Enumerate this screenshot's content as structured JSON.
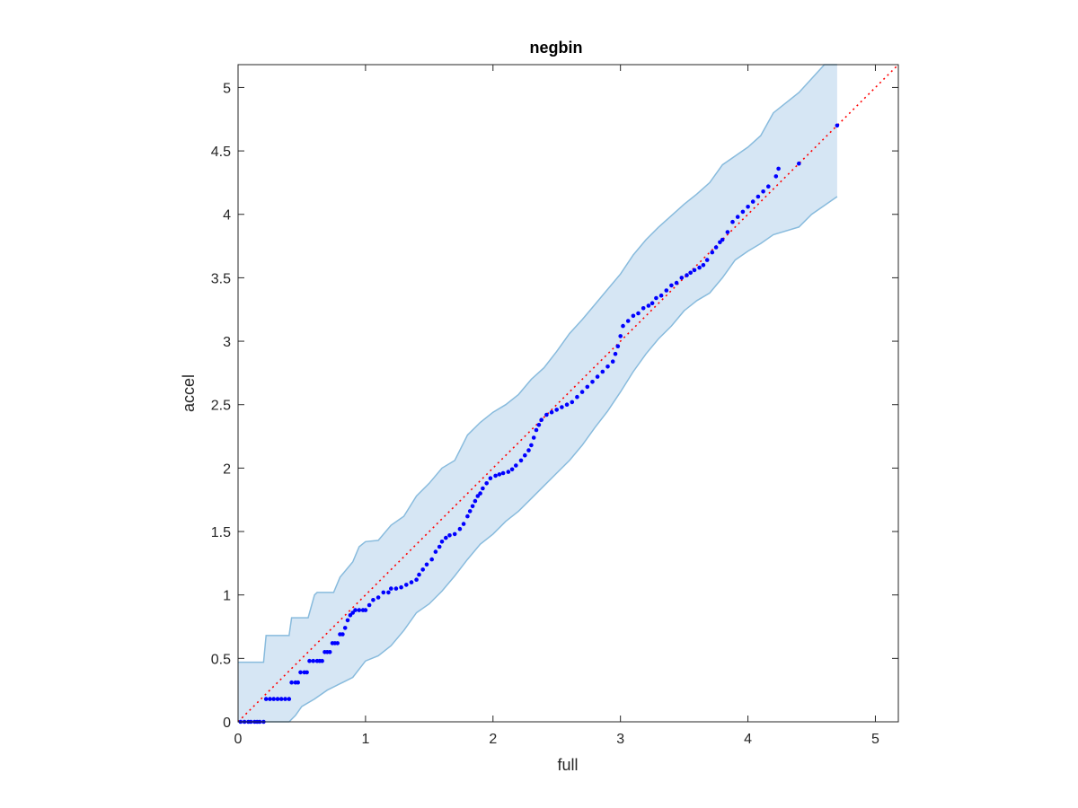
{
  "chart_data": {
    "type": "scatter",
    "title": "negbin",
    "xlabel": "full",
    "ylabel": "accel",
    "xlim": [
      0,
      5.18
    ],
    "ylim": [
      0,
      5.18
    ],
    "xticks": [
      0,
      1,
      2,
      3,
      4,
      5
    ],
    "yticks": [
      0,
      0.5,
      1,
      1.5,
      2,
      2.5,
      3,
      3.5,
      4,
      4.5,
      5
    ],
    "xtick_labels": [
      "0",
      "1",
      "2",
      "3",
      "4",
      "5"
    ],
    "ytick_labels": [
      "0",
      "0.5",
      "1",
      "1.5",
      "2",
      "2.5",
      "3",
      "3.5",
      "4",
      "4.5",
      "5"
    ],
    "grid": false,
    "reference_line": {
      "style": "dotted",
      "color": "#ff0000",
      "from": [
        0,
        0
      ],
      "to": [
        5.18,
        5.18
      ]
    },
    "band": {
      "fill": "#d6e6f4",
      "stroke": "#88bbdd",
      "upper": [
        [
          0,
          0.47
        ],
        [
          0.2,
          0.47
        ],
        [
          0.22,
          0.68
        ],
        [
          0.4,
          0.68
        ],
        [
          0.42,
          0.82
        ],
        [
          0.55,
          0.82
        ],
        [
          0.6,
          1.0
        ],
        [
          0.6,
          1.0
        ],
        [
          0.62,
          1.02
        ],
        [
          0.75,
          1.02
        ],
        [
          0.8,
          1.14
        ],
        [
          0.9,
          1.26
        ],
        [
          0.95,
          1.38
        ],
        [
          1.0,
          1.42
        ],
        [
          1.1,
          1.43
        ],
        [
          1.2,
          1.55
        ],
        [
          1.3,
          1.62
        ],
        [
          1.4,
          1.78
        ],
        [
          1.5,
          1.88
        ],
        [
          1.6,
          2.0
        ],
        [
          1.7,
          2.06
        ],
        [
          1.8,
          2.26
        ],
        [
          1.9,
          2.36
        ],
        [
          2.0,
          2.44
        ],
        [
          2.1,
          2.5
        ],
        [
          2.2,
          2.58
        ],
        [
          2.3,
          2.7
        ],
        [
          2.4,
          2.79
        ],
        [
          2.5,
          2.92
        ],
        [
          2.6,
          3.06
        ],
        [
          2.7,
          3.17
        ],
        [
          2.8,
          3.29
        ],
        [
          2.9,
          3.41
        ],
        [
          3.0,
          3.53
        ],
        [
          3.1,
          3.68
        ],
        [
          3.2,
          3.8
        ],
        [
          3.3,
          3.9
        ],
        [
          3.4,
          3.99
        ],
        [
          3.5,
          4.08
        ],
        [
          3.6,
          4.16
        ],
        [
          3.7,
          4.25
        ],
        [
          3.8,
          4.39
        ],
        [
          3.9,
          4.46
        ],
        [
          4.0,
          4.53
        ],
        [
          4.1,
          4.62
        ],
        [
          4.2,
          4.8
        ],
        [
          4.4,
          4.96
        ],
        [
          4.6,
          5.18
        ],
        [
          4.7,
          5.18
        ]
      ],
      "lower": [
        [
          0,
          0
        ],
        [
          0.4,
          0.0
        ],
        [
          0.45,
          0.05
        ],
        [
          0.5,
          0.12
        ],
        [
          0.6,
          0.18
        ],
        [
          0.7,
          0.25
        ],
        [
          0.8,
          0.3
        ],
        [
          0.9,
          0.35
        ],
        [
          1.0,
          0.48
        ],
        [
          1.1,
          0.52
        ],
        [
          1.2,
          0.6
        ],
        [
          1.3,
          0.72
        ],
        [
          1.4,
          0.86
        ],
        [
          1.5,
          0.93
        ],
        [
          1.6,
          1.03
        ],
        [
          1.7,
          1.15
        ],
        [
          1.8,
          1.28
        ],
        [
          1.9,
          1.4
        ],
        [
          2.0,
          1.48
        ],
        [
          2.1,
          1.58
        ],
        [
          2.2,
          1.66
        ],
        [
          2.3,
          1.76
        ],
        [
          2.4,
          1.86
        ],
        [
          2.5,
          1.96
        ],
        [
          2.6,
          2.06
        ],
        [
          2.7,
          2.18
        ],
        [
          2.8,
          2.32
        ],
        [
          2.9,
          2.45
        ],
        [
          3.0,
          2.6
        ],
        [
          3.1,
          2.76
        ],
        [
          3.2,
          2.9
        ],
        [
          3.3,
          3.02
        ],
        [
          3.4,
          3.12
        ],
        [
          3.5,
          3.24
        ],
        [
          3.6,
          3.32
        ],
        [
          3.7,
          3.38
        ],
        [
          3.8,
          3.5
        ],
        [
          3.9,
          3.64
        ],
        [
          4.0,
          3.71
        ],
        [
          4.1,
          3.77
        ],
        [
          4.2,
          3.84
        ],
        [
          4.4,
          3.9
        ],
        [
          4.5,
          4.0
        ],
        [
          4.7,
          4.14
        ]
      ]
    },
    "series": [
      {
        "color": "#0000ff",
        "marker": "dot",
        "points": [
          [
            0.02,
            0.0
          ],
          [
            0.05,
            0.0
          ],
          [
            0.08,
            0.0
          ],
          [
            0.1,
            0.0
          ],
          [
            0.13,
            0.0
          ],
          [
            0.15,
            0.0
          ],
          [
            0.17,
            0.0
          ],
          [
            0.2,
            0.0
          ],
          [
            0.22,
            0.18
          ],
          [
            0.25,
            0.18
          ],
          [
            0.28,
            0.18
          ],
          [
            0.31,
            0.18
          ],
          [
            0.34,
            0.18
          ],
          [
            0.37,
            0.18
          ],
          [
            0.4,
            0.18
          ],
          [
            0.42,
            0.31
          ],
          [
            0.45,
            0.31
          ],
          [
            0.47,
            0.31
          ],
          [
            0.49,
            0.39
          ],
          [
            0.52,
            0.39
          ],
          [
            0.54,
            0.39
          ],
          [
            0.56,
            0.48
          ],
          [
            0.59,
            0.48
          ],
          [
            0.62,
            0.48
          ],
          [
            0.64,
            0.48
          ],
          [
            0.66,
            0.48
          ],
          [
            0.68,
            0.55
          ],
          [
            0.7,
            0.55
          ],
          [
            0.72,
            0.55
          ],
          [
            0.74,
            0.62
          ],
          [
            0.76,
            0.62
          ],
          [
            0.78,
            0.62
          ],
          [
            0.8,
            0.69
          ],
          [
            0.82,
            0.69
          ],
          [
            0.84,
            0.74
          ],
          [
            0.86,
            0.8
          ],
          [
            0.88,
            0.84
          ],
          [
            0.9,
            0.86
          ],
          [
            0.92,
            0.88
          ],
          [
            0.95,
            0.88
          ],
          [
            0.98,
            0.88
          ],
          [
            1.0,
            0.88
          ],
          [
            1.03,
            0.92
          ],
          [
            1.06,
            0.96
          ],
          [
            1.1,
            0.98
          ],
          [
            1.14,
            1.02
          ],
          [
            1.18,
            1.02
          ],
          [
            1.2,
            1.05
          ],
          [
            1.24,
            1.05
          ],
          [
            1.28,
            1.06
          ],
          [
            1.32,
            1.08
          ],
          [
            1.36,
            1.1
          ],
          [
            1.4,
            1.12
          ],
          [
            1.42,
            1.16
          ],
          [
            1.45,
            1.2
          ],
          [
            1.48,
            1.24
          ],
          [
            1.52,
            1.28
          ],
          [
            1.55,
            1.34
          ],
          [
            1.58,
            1.38
          ],
          [
            1.6,
            1.42
          ],
          [
            1.63,
            1.45
          ],
          [
            1.66,
            1.47
          ],
          [
            1.7,
            1.48
          ],
          [
            1.74,
            1.52
          ],
          [
            1.77,
            1.56
          ],
          [
            1.8,
            1.62
          ],
          [
            1.82,
            1.66
          ],
          [
            1.84,
            1.7
          ],
          [
            1.86,
            1.74
          ],
          [
            1.88,
            1.78
          ],
          [
            1.9,
            1.8
          ],
          [
            1.92,
            1.84
          ],
          [
            1.95,
            1.88
          ],
          [
            1.98,
            1.92
          ],
          [
            2.02,
            1.94
          ],
          [
            2.05,
            1.95
          ],
          [
            2.08,
            1.96
          ],
          [
            2.12,
            1.97
          ],
          [
            2.15,
            1.99
          ],
          [
            2.18,
            2.02
          ],
          [
            2.22,
            2.06
          ],
          [
            2.25,
            2.1
          ],
          [
            2.28,
            2.14
          ],
          [
            2.3,
            2.18
          ],
          [
            2.32,
            2.24
          ],
          [
            2.34,
            2.3
          ],
          [
            2.36,
            2.34
          ],
          [
            2.38,
            2.38
          ],
          [
            2.42,
            2.42
          ],
          [
            2.46,
            2.44
          ],
          [
            2.5,
            2.46
          ],
          [
            2.54,
            2.48
          ],
          [
            2.58,
            2.5
          ],
          [
            2.62,
            2.52
          ],
          [
            2.66,
            2.56
          ],
          [
            2.7,
            2.6
          ],
          [
            2.74,
            2.64
          ],
          [
            2.78,
            2.68
          ],
          [
            2.82,
            2.72
          ],
          [
            2.86,
            2.76
          ],
          [
            2.9,
            2.8
          ],
          [
            2.94,
            2.84
          ],
          [
            2.96,
            2.9
          ],
          [
            2.98,
            2.96
          ],
          [
            3.0,
            3.04
          ],
          [
            3.02,
            3.12
          ],
          [
            3.06,
            3.16
          ],
          [
            3.1,
            3.2
          ],
          [
            3.14,
            3.22
          ],
          [
            3.18,
            3.26
          ],
          [
            3.22,
            3.28
          ],
          [
            3.25,
            3.3
          ],
          [
            3.28,
            3.34
          ],
          [
            3.32,
            3.36
          ],
          [
            3.36,
            3.4
          ],
          [
            3.4,
            3.44
          ],
          [
            3.44,
            3.46
          ],
          [
            3.48,
            3.5
          ],
          [
            3.52,
            3.52
          ],
          [
            3.55,
            3.54
          ],
          [
            3.58,
            3.56
          ],
          [
            3.62,
            3.58
          ],
          [
            3.65,
            3.6
          ],
          [
            3.68,
            3.64
          ],
          [
            3.72,
            3.7
          ],
          [
            3.75,
            3.74
          ],
          [
            3.78,
            3.78
          ],
          [
            3.8,
            3.8
          ],
          [
            3.84,
            3.86
          ],
          [
            3.88,
            3.94
          ],
          [
            3.92,
            3.98
          ],
          [
            3.96,
            4.02
          ],
          [
            4.0,
            4.06
          ],
          [
            4.04,
            4.1
          ],
          [
            4.08,
            4.14
          ],
          [
            4.12,
            4.18
          ],
          [
            4.16,
            4.22
          ],
          [
            4.22,
            4.3
          ],
          [
            4.24,
            4.36
          ],
          [
            4.4,
            4.4
          ],
          [
            4.7,
            4.7
          ]
        ]
      }
    ]
  }
}
